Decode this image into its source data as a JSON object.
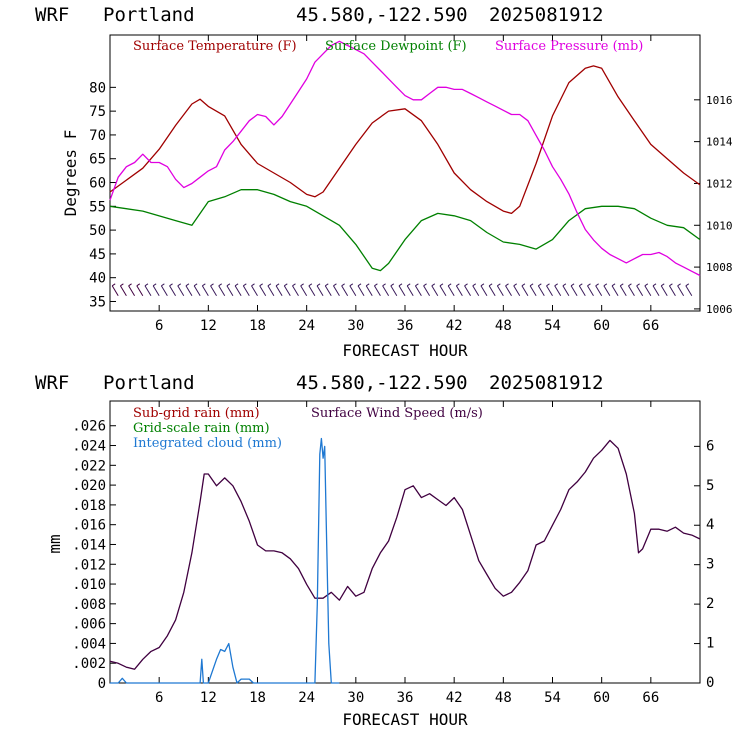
{
  "charts_header": {
    "model": "WRF",
    "site": "Portland",
    "coords": "45.580,-122.590",
    "run": "2025081912"
  },
  "chart_data": [
    {
      "type": "line",
      "xlabel": "FORECAST HOUR",
      "ylabel": "Degrees F",
      "xlim": [
        0,
        72
      ],
      "xticks": [
        "6",
        "12",
        "18",
        "24",
        "30",
        "36",
        "42",
        "48",
        "54",
        "60",
        "66"
      ],
      "ylim_left": [
        33,
        91
      ],
      "yticks_left": [
        "35",
        "40",
        "45",
        "50",
        "55",
        "60",
        "65",
        "70",
        "75",
        "80"
      ],
      "ylim_right": [
        1005.9,
        1019.1
      ],
      "yticks_right": [
        "1006",
        "1008",
        "1010",
        "1012",
        "1014",
        "1016"
      ],
      "legend": [
        "Surface Temperature (F)",
        "Surface Dewpoint (F)",
        "Surface Pressure (mb)"
      ],
      "series": [
        {
          "name": "Surface Temperature (F)",
          "color": "#a00000",
          "axis": "left",
          "x": [
            0,
            2,
            4,
            6,
            8,
            10,
            11,
            12,
            14,
            16,
            18,
            20,
            22,
            24,
            25,
            26,
            28,
            30,
            32,
            34,
            36,
            38,
            40,
            42,
            44,
            46,
            48,
            49,
            50,
            52,
            54,
            56,
            58,
            59,
            60,
            62,
            64,
            66,
            68,
            70,
            72
          ],
          "values": [
            58,
            60.5,
            63,
            67,
            72,
            76.5,
            77.5,
            76,
            74,
            68,
            64,
            62,
            60,
            57.5,
            57,
            58,
            63,
            68,
            72.5,
            75,
            75.5,
            73,
            68,
            62,
            58.5,
            56,
            54,
            53.5,
            55,
            64,
            74,
            81,
            84,
            84.5,
            84,
            78,
            73,
            68,
            65,
            62,
            59.5
          ]
        },
        {
          "name": "Surface Dewpoint (F)",
          "color": "#008000",
          "axis": "left",
          "x": [
            0,
            4,
            8,
            10,
            12,
            14,
            16,
            18,
            20,
            22,
            24,
            26,
            28,
            30,
            32,
            33,
            34,
            36,
            38,
            40,
            42,
            44,
            46,
            48,
            50,
            52,
            54,
            56,
            58,
            60,
            62,
            64,
            66,
            68,
            70,
            72
          ],
          "values": [
            55,
            54,
            52,
            51,
            56,
            57,
            58.5,
            58.5,
            57.5,
            56,
            55,
            53,
            51,
            47,
            42,
            41.5,
            43,
            48,
            52,
            53.5,
            53,
            52,
            49.5,
            47.5,
            47,
            46,
            48,
            52,
            54.5,
            55,
            55,
            54.5,
            52.5,
            51,
            50.5,
            48
          ]
        },
        {
          "name": "Surface Pressure (mb)",
          "color": "#e000e0",
          "axis": "right",
          "x": [
            0,
            1,
            2,
            3,
            4,
            5,
            6,
            7,
            8,
            9,
            10,
            11,
            12,
            13,
            14,
            15,
            16,
            17,
            18,
            19,
            20,
            21,
            22,
            23,
            24,
            25,
            26,
            27,
            28,
            29,
            30,
            31,
            32,
            33,
            34,
            35,
            36,
            37,
            38,
            39,
            40,
            41,
            42,
            43,
            44,
            45,
            46,
            47,
            48,
            49,
            50,
            51,
            52,
            53,
            54,
            55,
            56,
            57,
            58,
            59,
            60,
            61,
            62,
            63,
            64,
            65,
            66,
            67,
            68,
            69,
            70,
            71,
            72
          ],
          "values": [
            1011.2,
            1012.3,
            1012.8,
            1013,
            1013.4,
            1013,
            1013,
            1012.8,
            1012.2,
            1011.8,
            1012,
            1012.3,
            1012.6,
            1012.8,
            1013.6,
            1014,
            1014.5,
            1015,
            1015.3,
            1015.2,
            1014.8,
            1015.2,
            1015.8,
            1016.4,
            1017,
            1017.8,
            1018.2,
            1018.6,
            1018.8,
            1018.6,
            1018.4,
            1018.2,
            1017.8,
            1017.4,
            1017,
            1016.6,
            1016.2,
            1016,
            1016,
            1016.3,
            1016.6,
            1016.6,
            1016.5,
            1016.5,
            1016.3,
            1016.1,
            1015.9,
            1015.7,
            1015.5,
            1015.3,
            1015.3,
            1015,
            1014.3,
            1013.6,
            1012.8,
            1012.2,
            1011.5,
            1010.6,
            1009.8,
            1009.3,
            1008.9,
            1008.6,
            1008.4,
            1008.2,
            1008.4,
            1008.6,
            1008.6,
            1008.7,
            1008.5,
            1008.2,
            1008,
            1007.8,
            1007.6
          ]
        }
      ],
      "wind_barbs": {
        "x": [
          1,
          2,
          3,
          4,
          5,
          6,
          7,
          8,
          9,
          10,
          11,
          12,
          13,
          14,
          15,
          16,
          17,
          18,
          19,
          20,
          21,
          22,
          23,
          24,
          25,
          26,
          27,
          28,
          29,
          30,
          31,
          32,
          33,
          34,
          35,
          36,
          37,
          38,
          39,
          40,
          41,
          42,
          43,
          44,
          45,
          46,
          47,
          48,
          49,
          50,
          51,
          52,
          53,
          54,
          55,
          56,
          57,
          58,
          59,
          60,
          61,
          62,
          63,
          64,
          65,
          66,
          67,
          68,
          69,
          70,
          71
        ]
      }
    },
    {
      "type": "line",
      "xlabel": "FORECAST HOUR",
      "ylabel": "mm",
      "xlim": [
        0,
        72
      ],
      "xticks": [
        "6",
        "12",
        "18",
        "24",
        "30",
        "36",
        "42",
        "48",
        "54",
        "60",
        "66"
      ],
      "ylim_left": [
        0,
        0.0285
      ],
      "yticks_left": [
        "0",
        ".002",
        ".004",
        ".006",
        ".008",
        ".010",
        ".012",
        ".014",
        ".016",
        ".018",
        ".020",
        ".022",
        ".024",
        ".026"
      ],
      "ylim_right": [
        0,
        7.15
      ],
      "yticks_right": [
        "0",
        "1",
        "2",
        "3",
        "4",
        "5",
        "6"
      ],
      "legend": [
        "Sub-grid rain (mm)",
        "Grid-scale rain (mm)",
        "Integrated cloud (mm)",
        "Surface Wind Speed (m/s)"
      ],
      "series": [
        {
          "name": "Surface Wind Speed (m/s)",
          "color": "#400040",
          "axis": "right",
          "x": [
            0,
            1,
            2,
            3,
            4,
            5,
            6,
            7,
            8,
            9,
            10,
            11,
            11.5,
            12,
            13,
            14,
            15,
            16,
            17,
            18,
            19,
            20,
            21,
            22,
            23,
            24,
            25,
            26,
            27,
            28,
            29,
            30,
            31,
            32,
            33,
            34,
            35,
            36,
            37,
            38,
            39,
            40,
            41,
            42,
            43,
            44,
            45,
            46,
            47,
            48,
            49,
            50,
            51,
            52,
            53,
            54,
            55,
            56,
            57,
            58,
            59,
            60,
            61,
            62,
            63,
            64,
            64.5,
            65,
            66,
            67,
            68,
            69,
            70,
            71,
            72
          ],
          "values": [
            0.55,
            0.5,
            0.4,
            0.35,
            0.6,
            0.8,
            0.9,
            1.2,
            1.6,
            2.3,
            3.3,
            4.6,
            5.3,
            5.3,
            5.0,
            5.2,
            5.0,
            4.6,
            4.1,
            3.5,
            3.35,
            3.35,
            3.3,
            3.15,
            2.9,
            2.5,
            2.15,
            2.15,
            2.3,
            2.1,
            2.45,
            2.2,
            2.3,
            2.9,
            3.3,
            3.6,
            4.2,
            4.9,
            5.0,
            4.7,
            4.8,
            4.65,
            4.5,
            4.7,
            4.4,
            3.75,
            3.1,
            2.75,
            2.4,
            2.2,
            2.3,
            2.55,
            2.85,
            3.5,
            3.6,
            4.0,
            4.4,
            4.9,
            5.1,
            5.35,
            5.7,
            5.9,
            6.15,
            5.95,
            5.3,
            4.3,
            3.3,
            3.4,
            3.9,
            3.9,
            3.85,
            3.95,
            3.8,
            3.75,
            3.65
          ]
        },
        {
          "name": "Integrated cloud (mm)",
          "color": "#1e78d2",
          "axis": "right",
          "x": [
            0,
            1,
            1.5,
            2,
            11,
            11.2,
            11.4,
            11.6,
            12,
            13,
            13.5,
            14,
            14.5,
            15,
            15.5,
            16,
            17,
            17.5,
            18,
            25,
            25.3,
            25.6,
            25.8,
            26.0,
            26.2,
            26.4,
            26.7,
            27,
            28
          ],
          "values": [
            0,
            0,
            0.12,
            0,
            0,
            0.6,
            0,
            0,
            0,
            0.6,
            0.85,
            0.8,
            1.0,
            0.4,
            0,
            0.1,
            0.1,
            0,
            0,
            0,
            2.0,
            5.8,
            6.2,
            5.7,
            6.0,
            4.0,
            1.0,
            0,
            0
          ]
        }
      ]
    }
  ]
}
